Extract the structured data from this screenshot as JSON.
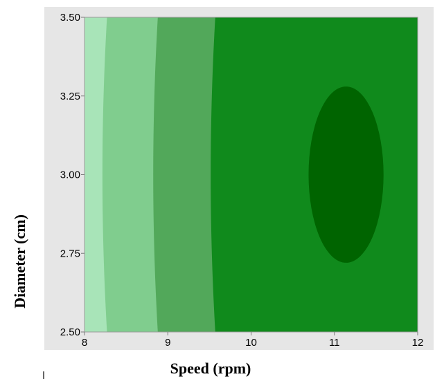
{
  "chart_data": {
    "type": "contour",
    "xlabel": "Speed (rpm)",
    "ylabel": "Diameter (cm)",
    "xlim": [
      8,
      12
    ],
    "ylim": [
      2.5,
      3.5
    ],
    "x_ticks": [
      8,
      9,
      10,
      11,
      12
    ],
    "x_tick_labels": [
      "8",
      "9",
      "10",
      "11",
      "12"
    ],
    "y_ticks": [
      2.5,
      2.75,
      3.0,
      3.25,
      3.5
    ],
    "y_tick_labels": [
      "2.50",
      "2.75",
      "3.00",
      "3.25",
      "3.50"
    ],
    "grid": false,
    "legend": "none",
    "colors": {
      "panel_background": "#e6e6e6",
      "plot_border": "#9a9a9a",
      "levels": [
        "#a8e4b8",
        "#80cd8e",
        "#52a85a",
        "#108a1c",
        "#006400"
      ]
    },
    "contour_regions": [
      {
        "level": 1,
        "color": "#a8e4b8",
        "x_range": [
          8.0,
          8.27
        ]
      },
      {
        "level": 2,
        "color": "#80cd8e",
        "x_range": [
          8.27,
          8.88
        ]
      },
      {
        "level": 3,
        "color": "#52a85a",
        "x_range": [
          8.88,
          9.57
        ]
      },
      {
        "level": 4,
        "color": "#108a1c",
        "x_range": [
          9.57,
          12.0
        ]
      },
      {
        "level": 5,
        "color": "#006400",
        "center": [
          11.14,
          3.0
        ],
        "x_range": [
          10.69,
          11.59
        ],
        "y_range": [
          2.72,
          3.28
        ]
      }
    ]
  }
}
